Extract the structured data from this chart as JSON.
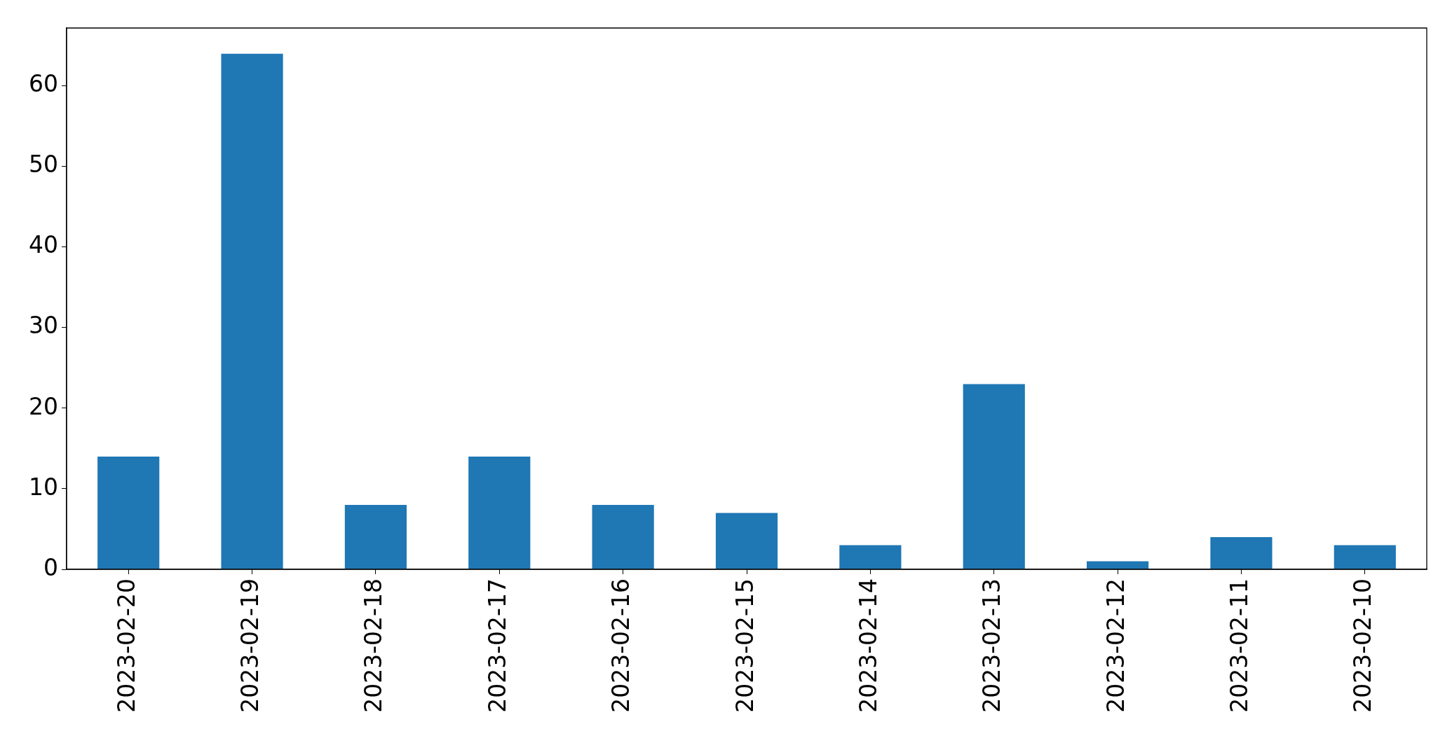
{
  "chart_data": {
    "type": "bar",
    "categories": [
      "2023-02-20",
      "2023-02-19",
      "2023-02-18",
      "2023-02-17",
      "2023-02-16",
      "2023-02-15",
      "2023-02-14",
      "2023-02-13",
      "2023-02-12",
      "2023-02-11",
      "2023-02-10"
    ],
    "values": [
      14,
      64,
      8,
      14,
      8,
      7,
      3,
      23,
      1,
      4,
      3
    ],
    "color": "#1f77b4",
    "ylim": [
      0,
      67.2
    ],
    "yticks": [
      0,
      10,
      20,
      30,
      40,
      50,
      60
    ],
    "grid": false
  }
}
